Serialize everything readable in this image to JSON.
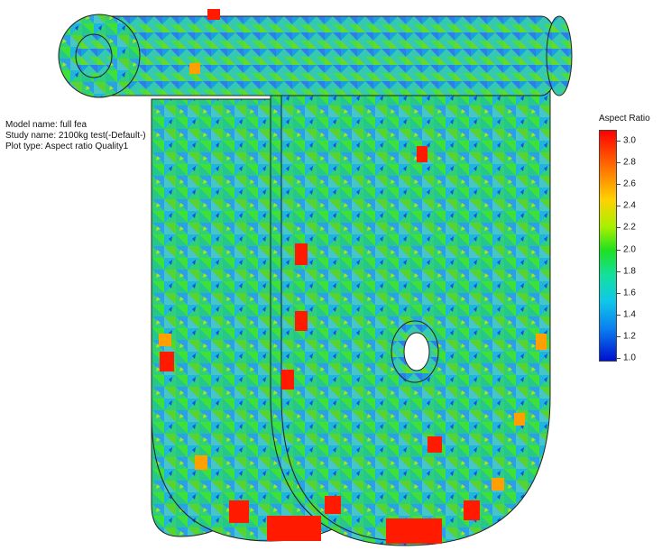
{
  "info": {
    "model_name": "Model name: full fea",
    "study_name": "Study name: 2100kg test(-Default-)",
    "plot_type": "Plot type: Aspect ratio Quality1"
  },
  "legend": {
    "title": "Aspect Ratio",
    "ticks": [
      "3.0",
      "2.8",
      "2.6",
      "2.4",
      "2.2",
      "2.0",
      "1.8",
      "1.6",
      "1.4",
      "1.2",
      "1.0"
    ],
    "range": [
      1.0,
      3.0
    ]
  },
  "colors": {
    "high": "#ff0000",
    "mid": "#20e020",
    "low": "#0010d0",
    "outline": "#222222"
  }
}
